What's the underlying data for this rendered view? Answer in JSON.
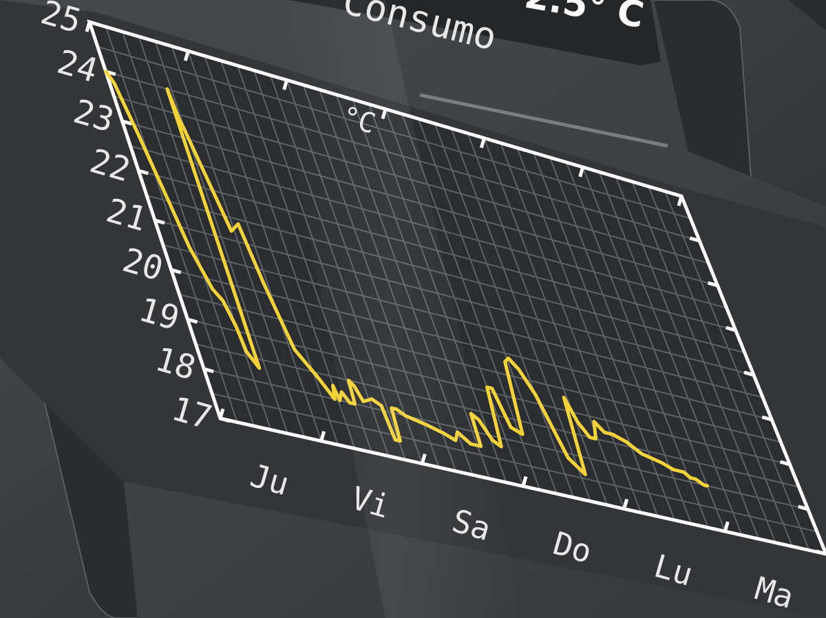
{
  "header": {
    "title_partial": "Consumo",
    "temperature_readout_partial": "2.5° C"
  },
  "chart_data": {
    "type": "line",
    "title": "",
    "xlabel": "",
    "ylabel": "°C",
    "ylim": [
      17,
      25
    ],
    "y_ticks": [
      "17",
      "18",
      "19",
      "20",
      "21",
      "22",
      "23",
      "24",
      "25"
    ],
    "x_tick_labels": [
      "Ju",
      "Vi",
      "Sa",
      "Do",
      "Lu",
      "Ma"
    ],
    "grid": true,
    "series": [
      {
        "x": [
          0.0,
          0.05,
          0.13,
          0.22,
          0.28,
          0.38,
          0.45,
          0.5,
          0.52,
          0.6,
          0.62,
          0.64,
          0.66,
          0.8,
          0.9,
          0.96,
          1.05,
          1.2,
          1.3,
          1.33,
          1.35,
          1.4,
          1.45,
          1.5,
          1.52,
          1.56,
          1.6,
          1.7,
          1.78,
          1.8,
          1.85,
          1.88,
          1.93,
          2.0,
          2.2,
          2.35,
          2.45,
          2.5,
          2.6,
          2.7,
          2.72,
          2.78,
          2.85,
          2.92,
          3.0,
          3.05,
          3.1,
          3.2,
          3.3,
          3.35,
          3.42,
          3.5,
          3.6,
          3.72,
          3.8,
          3.85,
          3.92,
          3.98,
          4.03,
          4.1,
          4.18,
          4.3,
          4.42,
          4.6,
          4.7,
          4.8,
          4.85,
          4.9,
          4.97,
          5.0
        ],
        "values": [
          24.0,
          23.8,
          22.8,
          21.5,
          20.6,
          19.8,
          19.6,
          19.1,
          18.6,
          18.3,
          24.0,
          23.4,
          23.2,
          21.2,
          21.4,
          20.2,
          18.9,
          18.4,
          18.0,
          18.3,
          18.0,
          18.2,
          18.0,
          18.0,
          18.5,
          18.4,
          18.1,
          18.2,
          18.1,
          17.4,
          17.4,
          18.1,
          18.1,
          18.0,
          17.9,
          17.8,
          17.7,
          17.9,
          17.7,
          17.7,
          18.4,
          18.3,
          17.9,
          17.8,
          19.1,
          19.1,
          18.3,
          18.2,
          19.8,
          19.9,
          19.7,
          19.2,
          17.9,
          17.6,
          19.3,
          18.8,
          18.5,
          18.5,
          18.9,
          18.7,
          18.7,
          18.6,
          18.4,
          18.3,
          18.2,
          18.2,
          18.1,
          18.1,
          18.0,
          18.0
        ]
      }
    ]
  },
  "colors": {
    "line": "#f3d23a",
    "grid": "#5e6266",
    "plot_bg": "#2b2d30",
    "panel_bg": "#3f4245",
    "axis": "#ffffff",
    "text": "#e8e8e8"
  }
}
